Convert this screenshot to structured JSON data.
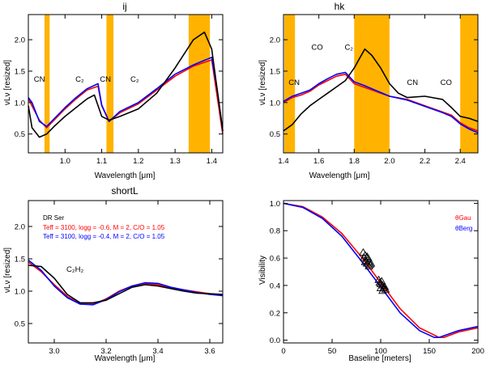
{
  "chart_data": [
    {
      "id": "ij",
      "type": "line",
      "title": "ij",
      "xlabel": "Wavelength [μm]",
      "ylabel": "νLν [resized]",
      "xlim": [
        0.9,
        1.43
      ],
      "ylim": [
        0.2,
        2.4
      ],
      "xticks": [
        1.0,
        1.1,
        1.2,
        1.3,
        1.4
      ],
      "xtick_labels": [
        "1.0",
        "1.1",
        "1.2",
        "1.3",
        "1.4"
      ],
      "yticks": [
        0.5,
        1.0,
        1.5,
        2.0
      ],
      "ytick_labels": [
        "0.5",
        "1.0",
        "1.5",
        "2.0"
      ],
      "bands": [
        [
          0.944,
          0.958
        ],
        [
          1.113,
          1.132
        ],
        [
          1.337,
          1.395
        ]
      ],
      "annotations": [
        {
          "text": "CN",
          "x": 0.93,
          "y": 1.33
        },
        {
          "text": "C₂",
          "x": 1.04,
          "y": 1.33
        },
        {
          "text": "CN",
          "x": 1.11,
          "y": 1.33
        },
        {
          "text": "C₂",
          "x": 1.19,
          "y": 1.33
        }
      ],
      "series": [
        {
          "name": "Teff = 3100, logg = -0.6, M = 2, C/O = 1.05",
          "color": "#ff0000",
          "x": [
            0.9,
            0.93,
            0.95,
            0.97,
            1.0,
            1.03,
            1.06,
            1.09,
            1.1,
            1.12,
            1.15,
            1.2,
            1.25,
            1.3,
            1.35,
            1.4,
            1.43
          ],
          "y": [
            1.06,
            0.72,
            0.6,
            0.72,
            0.9,
            1.06,
            1.2,
            1.26,
            0.95,
            0.7,
            0.84,
            0.98,
            1.2,
            1.42,
            1.58,
            1.68,
            0.5
          ]
        },
        {
          "name": "Teff = 3100, logg = -0.4, M = 2, C/O = 1.05",
          "color": "#0000ff",
          "x": [
            0.9,
            0.91,
            0.93,
            0.95,
            0.97,
            1.0,
            1.03,
            1.06,
            1.09,
            1.1,
            1.12,
            1.15,
            1.2,
            1.25,
            1.3,
            1.35,
            1.4,
            1.415,
            1.43
          ],
          "y": [
            1.08,
            1.0,
            0.7,
            0.62,
            0.74,
            0.92,
            1.08,
            1.22,
            1.3,
            0.96,
            0.7,
            0.86,
            1.0,
            1.22,
            1.45,
            1.6,
            1.72,
            1.2,
            0.55
          ]
        },
        {
          "name": "DR Ser",
          "color": "#000000",
          "x": [
            0.9,
            0.91,
            0.93,
            0.95,
            0.97,
            1.0,
            1.03,
            1.06,
            1.08,
            1.1,
            1.12,
            1.15,
            1.2,
            1.25,
            1.3,
            1.35,
            1.38,
            1.4,
            1.415,
            1.43
          ],
          "y": [
            0.95,
            0.6,
            0.45,
            0.5,
            0.62,
            0.78,
            0.92,
            1.06,
            1.12,
            0.78,
            0.72,
            0.78,
            0.9,
            1.15,
            1.55,
            2.0,
            2.12,
            1.85,
            1.2,
            0.55
          ]
        }
      ]
    },
    {
      "id": "hk",
      "type": "line",
      "title": "hk",
      "xlabel": "Wavelength [μm]",
      "ylabel": "νLν [resized]",
      "xlim": [
        1.4,
        2.5
      ],
      "ylim": [
        0.2,
        2.4
      ],
      "xticks": [
        1.4,
        1.6,
        1.8,
        2.0,
        2.2,
        2.4
      ],
      "xtick_labels": [
        "1.4",
        "1.6",
        "1.8",
        "2.0",
        "2.2",
        "2.4"
      ],
      "yticks": [
        0.5,
        1.0,
        1.5,
        2.0
      ],
      "ytick_labels": [
        "0.5",
        "1.0",
        "1.5",
        "2.0"
      ],
      "bands": [
        [
          1.405,
          1.465
        ],
        [
          1.8,
          2.0
        ],
        [
          2.4,
          2.5
        ]
      ],
      "annotations": [
        {
          "text": "CN",
          "x": 1.46,
          "y": 1.28
        },
        {
          "text": "CO",
          "x": 1.59,
          "y": 1.84
        },
        {
          "text": "C₂",
          "x": 1.77,
          "y": 1.84
        },
        {
          "text": "CN",
          "x": 2.13,
          "y": 1.28
        },
        {
          "text": "CO",
          "x": 2.32,
          "y": 1.28
        }
      ],
      "series": [
        {
          "name": "Teff = 3100, logg = -0.6, M = 2, C/O = 1.05",
          "color": "#ff0000",
          "x": [
            1.4,
            1.45,
            1.5,
            1.55,
            1.6,
            1.65,
            1.7,
            1.75,
            1.8,
            1.85,
            1.9,
            1.95,
            2.0,
            2.1,
            2.2,
            2.3,
            2.35,
            2.4,
            2.45,
            2.5
          ],
          "y": [
            1.0,
            1.08,
            1.12,
            1.18,
            1.28,
            1.35,
            1.42,
            1.45,
            1.3,
            1.25,
            1.2,
            1.15,
            1.1,
            1.05,
            0.95,
            0.85,
            0.8,
            0.68,
            0.6,
            0.55
          ]
        },
        {
          "name": "Teff = 3100, logg = -0.4, M = 2, C/O = 1.05",
          "color": "#0000ff",
          "x": [
            1.4,
            1.45,
            1.5,
            1.55,
            1.6,
            1.65,
            1.7,
            1.75,
            1.8,
            1.85,
            1.9,
            1.95,
            2.0,
            2.1,
            2.2,
            2.3,
            2.35,
            2.4,
            2.45,
            2.5
          ],
          "y": [
            1.02,
            1.1,
            1.15,
            1.2,
            1.3,
            1.38,
            1.45,
            1.48,
            1.33,
            1.28,
            1.22,
            1.16,
            1.1,
            1.04,
            0.94,
            0.84,
            0.78,
            0.66,
            0.58,
            0.52
          ]
        },
        {
          "name": "DR Ser",
          "color": "#000000",
          "x": [
            1.4,
            1.45,
            1.5,
            1.55,
            1.6,
            1.65,
            1.7,
            1.75,
            1.8,
            1.83,
            1.86,
            1.9,
            1.95,
            2.0,
            2.05,
            2.1,
            2.2,
            2.3,
            2.35,
            2.4,
            2.45,
            2.5
          ],
          "y": [
            0.55,
            0.65,
            0.82,
            0.95,
            1.05,
            1.15,
            1.25,
            1.35,
            1.55,
            1.7,
            1.85,
            1.75,
            1.55,
            1.3,
            1.15,
            1.08,
            1.1,
            1.05,
            0.92,
            0.78,
            0.75,
            0.7
          ]
        }
      ]
    },
    {
      "id": "shortL",
      "type": "line",
      "title": "shortL",
      "xlabel": "Wavelength [μm]",
      "ylabel": "νLν [resized]",
      "xlim": [
        2.9,
        3.65
      ],
      "ylim": [
        0.2,
        2.4
      ],
      "xticks": [
        3.0,
        3.2,
        3.4,
        3.6
      ],
      "xtick_labels": [
        "3.0",
        "3.2",
        "3.4",
        "3.6"
      ],
      "yticks": [
        0.5,
        1.0,
        1.5,
        2.0
      ],
      "ytick_labels": [
        "0.5",
        "1.0",
        "1.5",
        "2.0"
      ],
      "annotations": [
        {
          "text": "C₂H₂",
          "x": 3.08,
          "y": 1.3
        }
      ],
      "legend": {
        "title": "DR Ser",
        "entries": [
          {
            "text": "Teff = 3100, logg = -0.6, M = 2, C/O = 1.05",
            "color": "#ff0000"
          },
          {
            "text": "Teff = 3100, logg = -0.4, M = 2, C/O = 1.05",
            "color": "#0000ff"
          }
        ]
      },
      "series": [
        {
          "name": "Teff = 3100, logg = -0.6, M = 2, C/O = 1.05",
          "color": "#ff0000",
          "x": [
            2.9,
            2.95,
            3.0,
            3.05,
            3.1,
            3.15,
            3.2,
            3.25,
            3.3,
            3.35,
            3.4,
            3.45,
            3.5,
            3.55,
            3.6,
            3.65
          ],
          "y": [
            1.45,
            1.3,
            1.1,
            0.92,
            0.8,
            0.8,
            0.88,
            1.0,
            1.08,
            1.12,
            1.1,
            1.05,
            1.02,
            0.99,
            0.96,
            0.94
          ]
        },
        {
          "name": "Teff = 3100, logg = -0.4, M = 2, C/O = 1.05",
          "color": "#0000ff",
          "x": [
            2.9,
            2.95,
            3.0,
            3.05,
            3.1,
            3.15,
            3.2,
            3.25,
            3.3,
            3.35,
            3.4,
            3.45,
            3.5,
            3.55,
            3.6,
            3.65
          ],
          "y": [
            1.48,
            1.32,
            1.08,
            0.9,
            0.8,
            0.79,
            0.87,
            0.99,
            1.08,
            1.13,
            1.12,
            1.06,
            1.02,
            0.98,
            0.95,
            0.93
          ]
        },
        {
          "name": "DR Ser",
          "color": "#000000",
          "x": [
            2.9,
            2.95,
            3.0,
            3.05,
            3.1,
            3.15,
            3.2,
            3.25,
            3.3,
            3.35,
            3.4,
            3.45,
            3.5,
            3.55,
            3.6,
            3.65
          ],
          "y": [
            1.4,
            1.38,
            1.2,
            0.95,
            0.82,
            0.82,
            0.86,
            0.96,
            1.06,
            1.1,
            1.08,
            1.04,
            1.0,
            0.97,
            0.96,
            0.95
          ]
        }
      ]
    },
    {
      "id": "visibility",
      "type": "scatter",
      "title": "",
      "xlabel": "Baseline [meters]",
      "ylabel": "Visibility",
      "xlim": [
        0,
        200
      ],
      "ylim": [
        -0.02,
        1.02
      ],
      "xticks": [
        0,
        50,
        100,
        150,
        200
      ],
      "xtick_labels": [
        "0",
        "50",
        "100",
        "150",
        "200"
      ],
      "yticks": [
        0.0,
        0.2,
        0.4,
        0.6,
        0.8,
        1.0
      ],
      "ytick_labels": [
        "0.0",
        "0.2",
        "0.4",
        "0.6",
        "0.8",
        "1.0"
      ],
      "legend": {
        "entries": [
          {
            "text": "θGau",
            "color": "#ff0000"
          },
          {
            "text": "θBerg",
            "color": "#0000ff"
          }
        ]
      },
      "series": [
        {
          "name": "θGau",
          "color": "#ff0000",
          "x": [
            0,
            20,
            40,
            60,
            80,
            100,
            120,
            140,
            160,
            165,
            180,
            200
          ],
          "y": [
            1.0,
            0.975,
            0.9,
            0.78,
            0.61,
            0.42,
            0.23,
            0.09,
            0.02,
            0.02,
            0.06,
            0.09
          ]
        },
        {
          "name": "θBerg",
          "color": "#0000ff",
          "x": [
            0,
            20,
            40,
            60,
            80,
            100,
            120,
            140,
            155,
            160,
            180,
            200
          ],
          "y": [
            1.0,
            0.97,
            0.89,
            0.76,
            0.58,
            0.39,
            0.2,
            0.07,
            0.02,
            0.02,
            0.07,
            0.1
          ]
        }
      ],
      "points": [
        {
          "x": 83,
          "y": 0.6
        },
        {
          "x": 84,
          "y": 0.62
        },
        {
          "x": 85,
          "y": 0.58
        },
        {
          "x": 86,
          "y": 0.61
        },
        {
          "x": 86,
          "y": 0.56
        },
        {
          "x": 87,
          "y": 0.6
        },
        {
          "x": 88,
          "y": 0.57
        },
        {
          "x": 88,
          "y": 0.54
        },
        {
          "x": 89,
          "y": 0.55
        },
        {
          "x": 90,
          "y": 0.56
        },
        {
          "x": 82,
          "y": 0.64
        },
        {
          "x": 84,
          "y": 0.57
        },
        {
          "x": 98,
          "y": 0.44
        },
        {
          "x": 99,
          "y": 0.42
        },
        {
          "x": 100,
          "y": 0.41
        },
        {
          "x": 101,
          "y": 0.43
        },
        {
          "x": 102,
          "y": 0.4
        },
        {
          "x": 103,
          "y": 0.38
        },
        {
          "x": 104,
          "y": 0.39
        },
        {
          "x": 105,
          "y": 0.37
        },
        {
          "x": 100,
          "y": 0.38
        },
        {
          "x": 102,
          "y": 0.36
        }
      ]
    }
  ],
  "colors": {
    "band": "#ffb300",
    "model_a": "#ff0000",
    "model_b": "#0000ff",
    "observed": "#000000"
  }
}
